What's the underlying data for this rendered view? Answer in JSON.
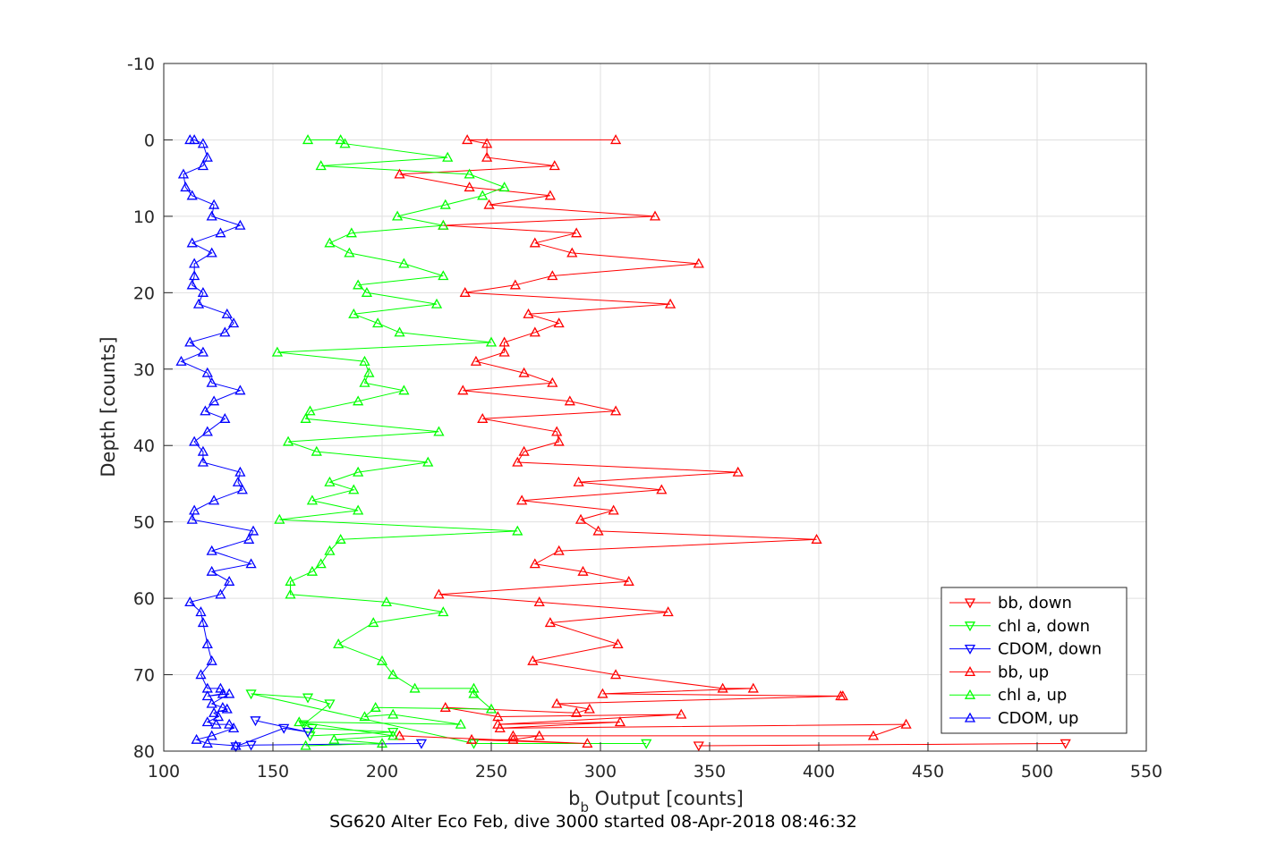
{
  "chart_data": {
    "type": "line",
    "xlabel_main": "b",
    "xlabel_sub": "b",
    "xlabel_rest": " Output [counts]",
    "ylabel": "Depth [counts]",
    "caption": "SG620 Alter Eco Feb, dive 3000 started 08-Apr-2018 08:46:32",
    "xlim": [
      100,
      550
    ],
    "ylim": [
      -10,
      80
    ],
    "y_reversed": true,
    "grid": true,
    "legend_position": "lower-right",
    "xticks": [
      "100",
      "150",
      "200",
      "250",
      "300",
      "350",
      "400",
      "450",
      "500",
      "550"
    ],
    "yticks": [
      "-10",
      "0",
      "10",
      "20",
      "30",
      "40",
      "50",
      "60",
      "70",
      "80"
    ],
    "series": [
      {
        "name": "bb, down",
        "color": "#ff0000",
        "marker": "triangle-down",
        "x": [
          513,
          345
        ],
        "y": [
          79.0,
          79.3
        ]
      },
      {
        "name": "chl a, down",
        "color": "#00ff00",
        "marker": "triangle-down",
        "x": [
          321,
          242,
          140,
          166,
          176,
          164,
          168,
          205,
          167
        ],
        "y": [
          79.0,
          79.0,
          72.5,
          73.0,
          73.8,
          76.5,
          77.0,
          77.5,
          78.0
        ]
      },
      {
        "name": "CDOM, down",
        "color": "#0000ff",
        "marker": "triangle-down",
        "x": [
          218,
          140,
          133,
          155,
          166,
          142
        ],
        "y": [
          79.0,
          79.2,
          79.4,
          77.0,
          77.5,
          76.0
        ]
      },
      {
        "name": "bb, up",
        "color": "#ff0000",
        "marker": "triangle-up",
        "x": [
          307,
          239,
          248,
          248,
          279,
          208,
          240,
          277,
          249,
          325,
          228,
          289,
          270,
          287,
          345,
          278,
          261,
          238,
          332,
          267,
          281,
          270,
          256,
          256,
          243,
          265,
          278,
          237,
          286,
          307,
          246,
          280,
          281,
          265,
          262,
          363,
          290,
          328,
          264,
          306,
          291,
          299,
          399,
          281,
          270,
          292,
          313,
          226,
          272,
          331,
          277,
          308,
          269,
          307,
          356,
          370,
          301,
          411,
          410,
          280,
          295,
          289,
          229,
          253,
          337,
          253,
          309,
          254,
          440,
          425,
          260,
          272,
          260,
          241,
          294,
          208
        ],
        "y": [
          0,
          0,
          0.5,
          2.3,
          3.4,
          4.5,
          6.2,
          7.3,
          8.5,
          10,
          11.2,
          12.2,
          13.5,
          14.8,
          16.2,
          17.8,
          19.0,
          20.0,
          21.5,
          22.8,
          24.0,
          25.2,
          26.5,
          27.8,
          29.0,
          30.5,
          31.8,
          32.8,
          34.2,
          35.5,
          36.5,
          38.2,
          39.5,
          40.8,
          42.2,
          43.5,
          44.8,
          45.8,
          47.2,
          48.5,
          49.7,
          51.2,
          52.3,
          53.8,
          55.5,
          56.5,
          57.8,
          59.5,
          60.5,
          61.8,
          63.2,
          66.0,
          68.2,
          70.0,
          71.8,
          71.8,
          72.5,
          72.8,
          72.8,
          73.8,
          74.5,
          75.0,
          74.3,
          75.5,
          75.2,
          76.5,
          76.2,
          77.0,
          76.5,
          78.0,
          78.0,
          78.0,
          78.5,
          78.5,
          79.0,
          78.0
        ]
      },
      {
        "name": "chl a, up",
        "color": "#00ff00",
        "marker": "triangle-up",
        "x": [
          166,
          181,
          183,
          230,
          172,
          240,
          256,
          246,
          229,
          207,
          228,
          186,
          176,
          185,
          210,
          228,
          189,
          193,
          225,
          187,
          198,
          208,
          250,
          152,
          192,
          194,
          192,
          210,
          189,
          167,
          165,
          226,
          157,
          170,
          221,
          189,
          176,
          187,
          168,
          189,
          153,
          262,
          181,
          176,
          172,
          168,
          158,
          158,
          202,
          228,
          196,
          180,
          200,
          205,
          215,
          242,
          242,
          250,
          197,
          192,
          205,
          236,
          162,
          205,
          178,
          200,
          165
        ],
        "y": [
          0,
          0,
          0.5,
          2.3,
          3.4,
          4.5,
          6.2,
          7.3,
          8.5,
          10,
          11.2,
          12.2,
          13.5,
          14.8,
          16.2,
          17.8,
          19.0,
          20.0,
          21.5,
          22.8,
          24.0,
          25.2,
          26.5,
          27.8,
          29.0,
          30.5,
          31.8,
          32.8,
          34.2,
          35.5,
          36.5,
          38.2,
          39.5,
          40.8,
          42.2,
          43.5,
          44.8,
          45.8,
          47.2,
          48.5,
          49.7,
          51.2,
          52.3,
          53.8,
          55.5,
          56.5,
          57.8,
          59.5,
          60.5,
          61.8,
          63.2,
          66.0,
          68.2,
          70.0,
          71.8,
          71.8,
          72.5,
          74.5,
          74.3,
          75.5,
          75.2,
          76.5,
          76.2,
          78.0,
          78.5,
          79.0,
          79.3
        ]
      },
      {
        "name": "CDOM, up",
        "color": "#0000ff",
        "marker": "triangle-up",
        "x": [
          112,
          114,
          118,
          120,
          118,
          109,
          110,
          113,
          123,
          122,
          135,
          126,
          113,
          122,
          114,
          114,
          113,
          118,
          116,
          129,
          132,
          128,
          112,
          118,
          108,
          120,
          122,
          135,
          123,
          119,
          128,
          120,
          114,
          118,
          118,
          135,
          134,
          136,
          123,
          114,
          113,
          141,
          139,
          122,
          140,
          122,
          130,
          126,
          112,
          117,
          118,
          120,
          122,
          117,
          120,
          126,
          127,
          120,
          130,
          122,
          127,
          129,
          123,
          125,
          120,
          124,
          130,
          132,
          122,
          115,
          120,
          133
        ],
        "y": [
          0,
          0,
          0.5,
          2.3,
          3.4,
          4.5,
          6.2,
          7.3,
          8.5,
          10,
          11.2,
          12.2,
          13.5,
          14.8,
          16.2,
          17.8,
          19.0,
          20.0,
          21.5,
          22.8,
          24.0,
          25.2,
          26.5,
          27.8,
          29.0,
          30.5,
          31.8,
          32.8,
          34.2,
          35.5,
          36.5,
          38.2,
          39.5,
          40.8,
          42.2,
          43.5,
          44.8,
          45.8,
          47.2,
          48.5,
          49.7,
          51.2,
          52.3,
          53.8,
          55.5,
          56.5,
          57.8,
          59.5,
          60.5,
          61.8,
          63.2,
          66.0,
          68.2,
          70.0,
          71.8,
          71.8,
          72.5,
          72.8,
          72.5,
          73.8,
          74.3,
          74.5,
          75.0,
          75.5,
          76.2,
          76.5,
          76.5,
          77.0,
          78.0,
          78.5,
          79.0,
          79.3
        ]
      }
    ]
  }
}
